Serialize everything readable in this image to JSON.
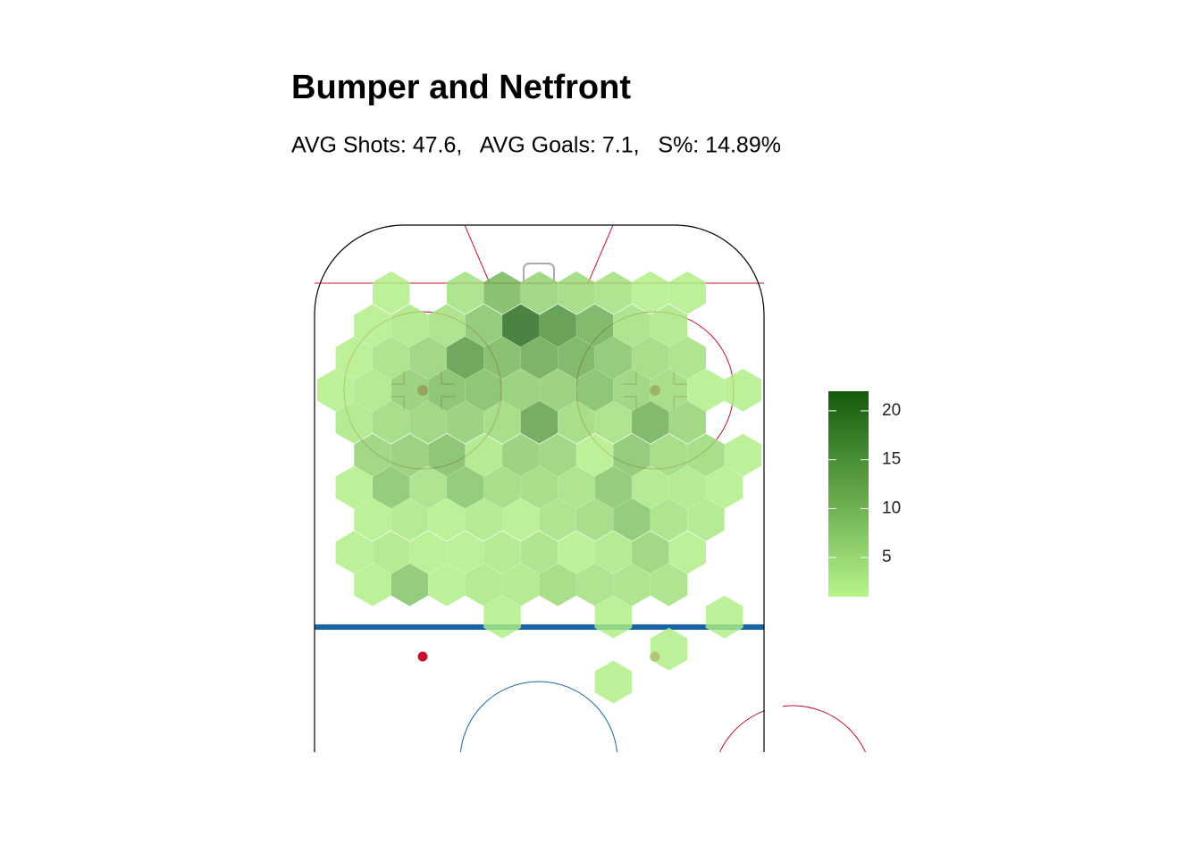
{
  "chart_data": {
    "type": "hexbin",
    "title": "Bumper and Netfront",
    "subtitle": "AVG Shots: 47.6,   AVG Goals: 7.1,   S%: 14.89%",
    "x": [
      -28,
      -14,
      -7,
      0,
      7,
      14,
      21,
      28,
      -31.5,
      -24.5,
      -17.5,
      -10.5,
      -3.5,
      3.5,
      10.5,
      17.5,
      24.5,
      -35,
      -28,
      -21,
      -14,
      -7,
      0,
      7,
      14,
      21,
      28,
      -38.5,
      -31.5,
      -24.5,
      -17.5,
      -10.5,
      -3.5,
      3.5,
      10.5,
      17.5,
      24.5,
      31.5,
      38.5,
      -35,
      -28,
      -21,
      -14,
      -7,
      0,
      7,
      14,
      21,
      28,
      -31.5,
      -24.5,
      -17.5,
      -10.5,
      -3.5,
      3.5,
      10.5,
      17.5,
      24.5,
      31.5,
      38.5,
      -35,
      -28,
      -21,
      -14,
      -7,
      0,
      7,
      14,
      21,
      28,
      35,
      -31.5,
      -24.5,
      -17.5,
      -10.5,
      -3.5,
      3.5,
      10.5,
      17.5,
      24.5,
      31.5,
      -35,
      -28,
      -21,
      -14,
      -7,
      0,
      7,
      14,
      21,
      28,
      -31.5,
      -24.5,
      -17.5,
      -10.5,
      -3.5,
      3.5,
      10.5,
      17.5,
      24.5,
      -7,
      14,
      35,
      24.5,
      14
    ],
    "y": [
      12.8,
      12.8,
      12.8,
      12.8,
      12.8,
      12.8,
      12.8,
      12.8,
      19,
      19,
      19,
      19,
      19,
      19,
      19,
      19,
      19,
      25.1,
      25.1,
      25.1,
      25.1,
      25.1,
      25.1,
      25.1,
      25.1,
      25.1,
      25.1,
      31.2,
      31.2,
      31.2,
      31.2,
      31.2,
      31.2,
      31.2,
      31.2,
      31.2,
      31.2,
      31.2,
      31.2,
      37.3,
      37.3,
      37.3,
      37.3,
      37.3,
      37.3,
      37.3,
      37.3,
      37.3,
      37.3,
      43.5,
      43.5,
      43.5,
      43.5,
      43.5,
      43.5,
      43.5,
      43.5,
      43.5,
      43.5,
      43.5,
      49.6,
      49.6,
      49.6,
      49.6,
      49.6,
      49.6,
      49.6,
      49.6,
      49.6,
      49.6,
      49.6,
      55.7,
      55.7,
      55.7,
      55.7,
      55.7,
      55.7,
      55.7,
      55.7,
      55.7,
      55.7,
      61.9,
      61.9,
      61.9,
      61.9,
      61.9,
      61.9,
      61.9,
      61.9,
      61.9,
      61.9,
      68,
      68,
      68,
      68,
      68,
      68,
      68,
      68,
      68,
      74.1,
      74.1,
      74.1,
      80.2,
      86.4
    ],
    "values": [
      2,
      4,
      10,
      6,
      5,
      4,
      2,
      2,
      2,
      3,
      4,
      8,
      20,
      15,
      11,
      4,
      3,
      2,
      4,
      6,
      14,
      10,
      12,
      11,
      8,
      5,
      4,
      2,
      3,
      7,
      9,
      9,
      7,
      7,
      9,
      6,
      5,
      2,
      2,
      3,
      5,
      6,
      7,
      5,
      13,
      5,
      4,
      11,
      6,
      6,
      7,
      9,
      3,
      7,
      6,
      2,
      8,
      5,
      5,
      2,
      2,
      8,
      4,
      8,
      5,
      5,
      4,
      8,
      3,
      3,
      2,
      2,
      3,
      2,
      3,
      2,
      4,
      5,
      8,
      4,
      3,
      2,
      3,
      2,
      2,
      3,
      4,
      2,
      3,
      6,
      2,
      2,
      8,
      2,
      3,
      3,
      5,
      4,
      4,
      4,
      2,
      2,
      2,
      2,
      2
    ],
    "colorlim": [
      1,
      22
    ],
    "colorticks": [
      5,
      10,
      15,
      20
    ],
    "color_low": "#b5f58a",
    "color_high": "#145a0c"
  }
}
